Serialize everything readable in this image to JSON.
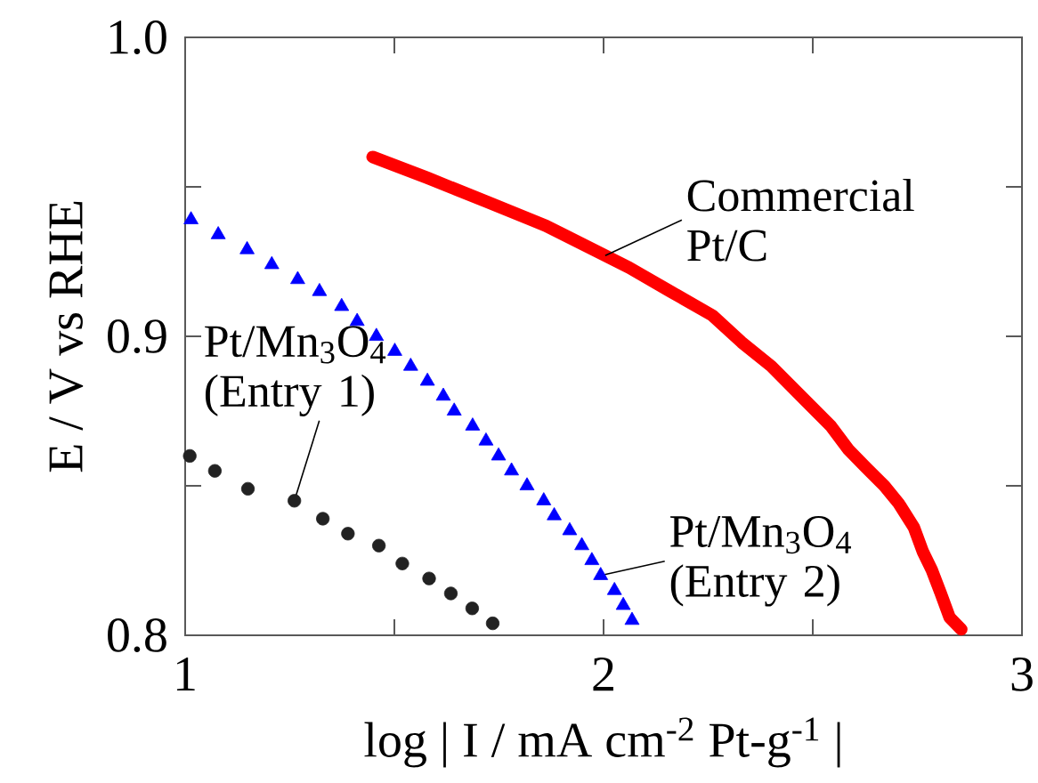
{
  "chart_data": {
    "type": "scatter",
    "xlabel": "log | I / mA cm$^{-2}$ Pt-g$^{-1}$ |",
    "ylabel": "E / V vs RHE",
    "xlim": [
      1,
      3
    ],
    "ylim": [
      0.8,
      1.0
    ],
    "xticks": [
      1,
      {
        "value": 1.5,
        "label": null
      },
      2,
      {
        "value": 2.5,
        "label": null
      },
      3
    ],
    "yticks": [
      {
        "value": 0.8,
        "label": "0.8"
      },
      {
        "value": 0.85,
        "label": null
      },
      {
        "value": 0.9,
        "label": "0.9"
      },
      {
        "value": 0.95,
        "label": null
      },
      {
        "value": 1.0,
        "label": "1.0"
      }
    ],
    "grid": false,
    "legend": false,
    "series": [
      {
        "name": "Pt/Mn$_{3}$O$_{4}$ (Entry 1)",
        "marker": "circle",
        "color": "#222222",
        "x": [
          1.011,
          1.071,
          1.15,
          1.261,
          1.329,
          1.389,
          1.463,
          1.519,
          1.583,
          1.635,
          1.686,
          1.735
        ],
        "values": [
          0.86,
          0.855,
          0.849,
          0.845,
          0.839,
          0.834,
          0.83,
          0.824,
          0.819,
          0.814,
          0.809,
          0.804
        ]
      },
      {
        "name": "Pt/Mn$_{3}$O$_{4}$ (Entry 2)",
        "marker": "triangle",
        "color": "#0000ff",
        "x": [
          1.014,
          1.079,
          1.148,
          1.207,
          1.269,
          1.321,
          1.374,
          1.411,
          1.457,
          1.501,
          1.539,
          1.579,
          1.617,
          1.643,
          1.687,
          1.719,
          1.749,
          1.78,
          1.817,
          1.857,
          1.882,
          1.919,
          1.948,
          1.972,
          1.993,
          2.026,
          2.047,
          2.068
        ],
        "values": [
          0.939,
          0.934,
          0.929,
          0.924,
          0.919,
          0.915,
          0.91,
          0.905,
          0.9,
          0.895,
          0.89,
          0.885,
          0.88,
          0.875,
          0.87,
          0.865,
          0.86,
          0.855,
          0.85,
          0.845,
          0.84,
          0.835,
          0.83,
          0.825,
          0.82,
          0.815,
          0.81,
          0.805
        ]
      },
      {
        "name": "Commercial Pt/C",
        "type": "line",
        "color": "#ff0000",
        "x": [
          1.448,
          1.579,
          1.721,
          1.862,
          2.004,
          2.061,
          2.16,
          2.26,
          2.33,
          2.401,
          2.472,
          2.543,
          2.586,
          2.628,
          2.671,
          2.706,
          2.742,
          2.763,
          2.784,
          2.806,
          2.827,
          2.855
        ],
        "values": [
          0.96,
          0.953,
          0.945,
          0.937,
          0.927,
          0.923,
          0.915,
          0.907,
          0.898,
          0.89,
          0.88,
          0.87,
          0.862,
          0.856,
          0.85,
          0.844,
          0.836,
          0.828,
          0.822,
          0.814,
          0.806,
          0.802
        ]
      }
    ]
  }
}
